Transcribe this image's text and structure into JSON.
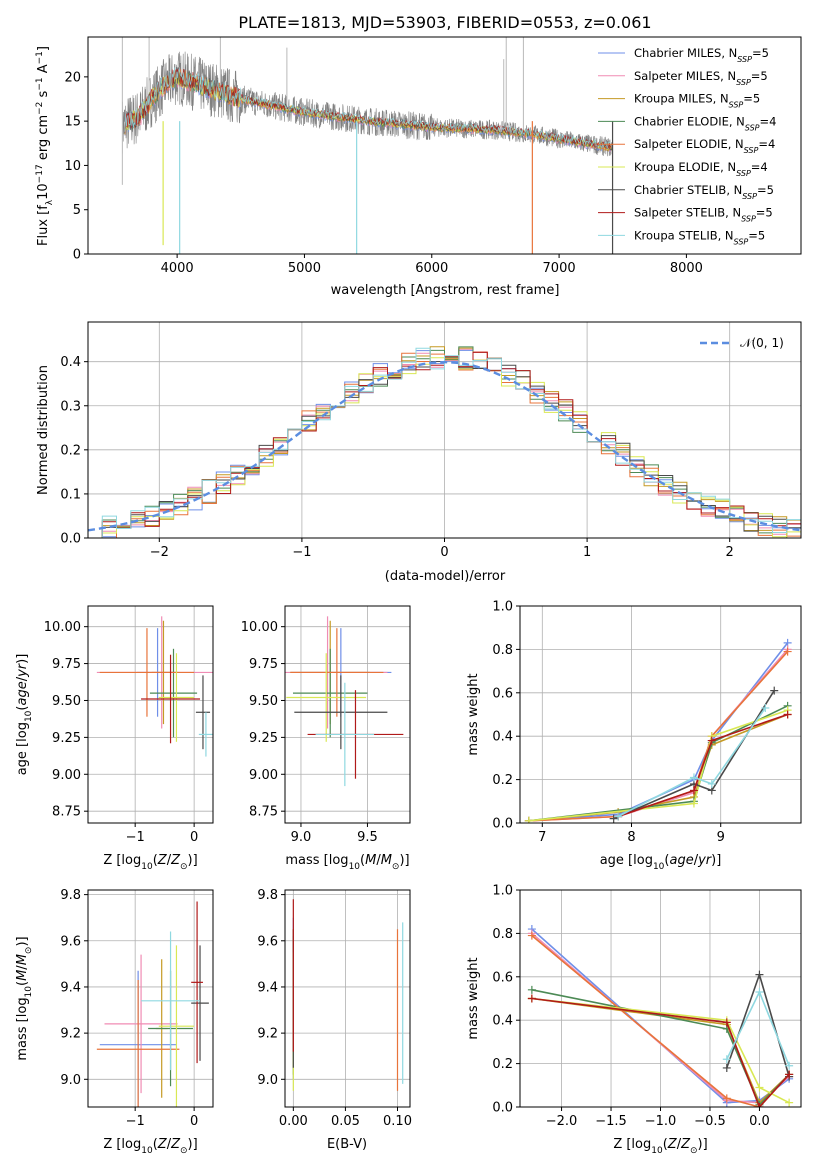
{
  "figure": {
    "title": "PLATE=1813, MJD=53903, FIBERID=0553, z=0.061",
    "series": [
      {
        "name": "Chabrier MILES",
        "nssp": "5",
        "color": "#6f8fe8"
      },
      {
        "name": "Salpeter MILES",
        "nssp": "5",
        "color": "#f08cb4"
      },
      {
        "name": "Kroupa MILES",
        "nssp": "5",
        "color": "#c59a24"
      },
      {
        "name": "Chabrier ELODIE",
        "nssp": "4",
        "color": "#4c8a55"
      },
      {
        "name": "Salpeter ELODIE",
        "nssp": "4",
        "color": "#e8743b"
      },
      {
        "name": "Kroupa ELODIE",
        "nssp": "4",
        "color": "#d9e854"
      },
      {
        "name": "Chabrier STELIB",
        "nssp": "5",
        "color": "#4a4a4a"
      },
      {
        "name": "Salpeter STELIB",
        "nssp": "5",
        "color": "#b01a1a"
      },
      {
        "name": "Kroupa STELIB",
        "nssp": "5",
        "color": "#8fd8e0"
      }
    ]
  },
  "chart_data": [
    {
      "type": "line",
      "panel": "spectrum",
      "title": "PLATE=1813, MJD=53903, FIBERID=0553, z=0.061",
      "xlabel": "wavelength [Angstrom, rest frame]",
      "ylabel_parts": [
        "Flux [f",
        "λ",
        "10",
        "−17",
        " erg cm",
        "−2",
        " s",
        "−1",
        " A",
        "−1",
        "]"
      ],
      "xlim": [
        3300,
        8900
      ],
      "ylim": [
        0,
        24.5
      ],
      "xticks": [
        4000,
        5000,
        6000,
        7000,
        8000
      ],
      "yticks": [
        0,
        5,
        10,
        15,
        20
      ],
      "legend": "top-right",
      "legend_suffix": "N",
      "legend_sub": "SSP",
      "data_color": "#808080",
      "continuum": {
        "x": [
          3570,
          3700,
          3800,
          3900,
          4000,
          4100,
          4300,
          4500,
          5000,
          5500,
          6000,
          6500,
          6800,
          7000,
          7200,
          7420
        ],
        "y": [
          14.5,
          15.5,
          17.5,
          19,
          20,
          19.5,
          18.5,
          17.5,
          16,
          15,
          14.3,
          14,
          13.5,
          13,
          12.5,
          12
        ]
      },
      "line_features": [
        {
          "x": 3890,
          "y": 1.0,
          "label": ""
        },
        {
          "x": 4020,
          "y": 0,
          "label": ""
        },
        {
          "x": 5410,
          "y": 0,
          "label": ""
        },
        {
          "x": 6790,
          "y": 0,
          "label": ""
        },
        {
          "x": 7420,
          "y": 0,
          "label": ""
        }
      ]
    },
    {
      "type": "line",
      "panel": "residuals",
      "xlabel": "(data-model)/error",
      "ylabel": "Normed distribution",
      "xlim": [
        -2.5,
        2.5
      ],
      "ylim": [
        0,
        0.49
      ],
      "xticks": [
        -2,
        -1,
        0,
        1,
        2
      ],
      "yticks": [
        0.0,
        0.1,
        0.2,
        0.3,
        0.4
      ],
      "grid": true,
      "legend": "top-right",
      "gaussian_label": "𝒩(0, 1)",
      "gaussian_color": "#5b8de0",
      "bin_width": 0.1
    },
    {
      "type": "scatter",
      "panel": "age-Z",
      "xlabel": "Z [log10(Z/Z⊙)]",
      "ylabel": "age  [log10(age/yr)]",
      "xlim": [
        -1.8,
        0.32
      ],
      "ylim": [
        8.67,
        10.14
      ],
      "xticks": [
        -1,
        0
      ],
      "yticks": [
        8.75,
        9.0,
        9.25,
        9.5,
        9.75,
        10.0
      ],
      "grid": true,
      "points": [
        {
          "series": 0,
          "x": -0.62,
          "y": 9.69,
          "xerr": 0.35,
          "yerr": 0.3
        },
        {
          "series": 1,
          "x": -0.55,
          "y": 9.69,
          "xerr": 1.1,
          "yerr": 0.38
        },
        {
          "series": 2,
          "x": -0.52,
          "y": 9.69,
          "xerr": 0.2,
          "yerr": 0.35
        },
        {
          "series": 3,
          "x": -0.35,
          "y": 9.55,
          "xerr": 0.4,
          "yerr": 0.3
        },
        {
          "series": 4,
          "x": -0.8,
          "y": 9.69,
          "xerr": 0.8,
          "yerr": 0.3
        },
        {
          "series": 5,
          "x": -0.3,
          "y": 9.52,
          "xerr": 0.3,
          "yerr": 0.3
        },
        {
          "series": 6,
          "x": 0.15,
          "y": 9.42,
          "xerr": 0.12,
          "yerr": 0.25
        },
        {
          "series": 7,
          "x": -0.4,
          "y": 9.51,
          "xerr": 0.5,
          "yerr": 0.3
        },
        {
          "series": 8,
          "x": 0.2,
          "y": 9.27,
          "xerr": 0.12,
          "yerr": 0.15
        }
      ]
    },
    {
      "type": "scatter",
      "panel": "age-mass",
      "xlabel": "mass [log10(M/M⊙)]",
      "ylabel": "",
      "xlim": [
        8.88,
        9.82
      ],
      "ylim": [
        8.67,
        10.14
      ],
      "xticks": [
        9.0,
        9.5
      ],
      "yticks": [
        8.75,
        9.0,
        9.25,
        9.5,
        9.75,
        10.0
      ],
      "grid": true,
      "points": [
        {
          "series": 0,
          "x": 9.3,
          "y": 9.69,
          "xerr": 0.38,
          "yerr": 0.3
        },
        {
          "series": 1,
          "x": 9.2,
          "y": 9.69,
          "xerr": 0.45,
          "yerr": 0.38
        },
        {
          "series": 2,
          "x": 9.22,
          "y": 9.69,
          "xerr": 0.3,
          "yerr": 0.35
        },
        {
          "series": 3,
          "x": 9.22,
          "y": 9.55,
          "xerr": 0.28,
          "yerr": 0.3
        },
        {
          "series": 4,
          "x": 9.27,
          "y": 9.69,
          "xerr": 0.35,
          "yerr": 0.3
        },
        {
          "series": 5,
          "x": 9.19,
          "y": 9.52,
          "xerr": 0.3,
          "yerr": 0.3
        },
        {
          "series": 6,
          "x": 9.3,
          "y": 9.42,
          "xerr": 0.35,
          "yerr": 0.25
        },
        {
          "series": 7,
          "x": 9.41,
          "y": 9.27,
          "xerr": 0.36,
          "yerr": 0.3
        },
        {
          "series": 8,
          "x": 9.33,
          "y": 9.27,
          "xerr": 0.22,
          "yerr": 0.35
        }
      ]
    },
    {
      "type": "line",
      "panel": "weight-age",
      "xlabel": "age  [log10(age/yr)]",
      "ylabel": "mass weight",
      "xlim": [
        6.75,
        9.9
      ],
      "ylim": [
        0,
        1.0
      ],
      "xticks": [
        7,
        8,
        9
      ],
      "yticks": [
        0.0,
        0.2,
        0.4,
        0.6,
        0.8,
        1.0
      ],
      "grid": true,
      "series_points": [
        {
          "series": 0,
          "x": [
            6.85,
            7.85,
            8.7,
            8.9,
            9.75
          ],
          "y": [
            0.01,
            0.04,
            0.2,
            0.38,
            0.83
          ]
        },
        {
          "series": 1,
          "x": [
            6.85,
            7.85,
            8.7,
            8.9,
            9.75
          ],
          "y": [
            0.01,
            0.03,
            0.14,
            0.4,
            0.8
          ]
        },
        {
          "series": 2,
          "x": [
            6.85,
            7.85,
            8.7,
            8.9,
            9.75
          ],
          "y": [
            0.01,
            0.05,
            0.12,
            0.36,
            0.5
          ]
        },
        {
          "series": 3,
          "x": [
            6.85,
            8.7,
            8.9,
            9.75
          ],
          "y": [
            0.01,
            0.1,
            0.37,
            0.54
          ]
        },
        {
          "series": 4,
          "x": [
            6.85,
            7.85,
            8.7,
            8.9,
            9.75
          ],
          "y": [
            0.01,
            0.03,
            0.15,
            0.4,
            0.79
          ]
        },
        {
          "series": 5,
          "x": [
            6.85,
            8.7,
            8.9,
            9.75
          ],
          "y": [
            0.01,
            0.09,
            0.4,
            0.52
          ]
        },
        {
          "series": 6,
          "x": [
            7.8,
            8.7,
            8.9,
            9.6
          ],
          "y": [
            0.02,
            0.18,
            0.15,
            0.61
          ]
        },
        {
          "series": 7,
          "x": [
            7.85,
            8.7,
            8.9,
            9.75
          ],
          "y": [
            0.03,
            0.15,
            0.38,
            0.5
          ]
        },
        {
          "series": 8,
          "x": [
            7.85,
            8.7,
            8.9,
            9.5
          ],
          "y": [
            0.03,
            0.21,
            0.18,
            0.53
          ]
        }
      ]
    },
    {
      "type": "scatter",
      "panel": "mass-Z",
      "xlabel": "Z [log10(Z/Z⊙)]",
      "ylabel": "mass [log10(M/M⊙)]",
      "xlim": [
        -1.8,
        0.32
      ],
      "ylim": [
        8.88,
        9.82
      ],
      "xticks": [
        -1,
        0
      ],
      "yticks": [
        9.0,
        9.2,
        9.4,
        9.6,
        9.8
      ],
      "grid": true,
      "points": [
        {
          "series": 0,
          "x": -0.95,
          "y": 9.15,
          "xerr": 0.65,
          "yerr": 0.32
        },
        {
          "series": 1,
          "x": -0.9,
          "y": 9.24,
          "xerr": 0.62,
          "yerr": 0.3
        },
        {
          "series": 2,
          "x": -0.55,
          "y": 9.22,
          "xerr": 0.1,
          "yerr": 0.3
        },
        {
          "series": 3,
          "x": -0.4,
          "y": 9.22,
          "xerr": 0.38,
          "yerr": 0.25
        },
        {
          "series": 4,
          "x": -0.95,
          "y": 9.13,
          "xerr": 0.7,
          "yerr": 0.3
        },
        {
          "series": 5,
          "x": -0.3,
          "y": 9.23,
          "xerr": 0.3,
          "yerr": 0.35
        },
        {
          "series": 6,
          "x": 0.1,
          "y": 9.33,
          "xerr": 0.15,
          "yerr": 0.25
        },
        {
          "series": 7,
          "x": 0.05,
          "y": 9.42,
          "xerr": 0.1,
          "yerr": 0.35
        },
        {
          "series": 8,
          "x": -0.4,
          "y": 9.34,
          "xerr": 0.5,
          "yerr": 0.3
        }
      ]
    },
    {
      "type": "scatter",
      "panel": "mass-EBV",
      "xlabel": "E(B-V)",
      "ylabel": "",
      "xlim": [
        -0.008,
        0.112
      ],
      "ylim": [
        8.88,
        9.82
      ],
      "xticks": [
        0.0,
        0.05,
        0.1
      ],
      "yticks": [
        9.0,
        9.2,
        9.4,
        9.6,
        9.8
      ],
      "grid": true,
      "points": [
        {
          "series": 0,
          "x": 0.0,
          "y": 9.35,
          "xerr": 0,
          "yerr": 0.35
        },
        {
          "series": 1,
          "x": 0.0,
          "y": 9.35,
          "xerr": 0,
          "yerr": 0.3
        },
        {
          "series": 2,
          "x": 0.0,
          "y": 9.35,
          "xerr": 0,
          "yerr": 0.3
        },
        {
          "series": 3,
          "x": 0.0,
          "y": 9.32,
          "xerr": 0,
          "yerr": 0.3
        },
        {
          "series": 4,
          "x": 0.1,
          "y": 9.3,
          "xerr": 0,
          "yerr": 0.35
        },
        {
          "series": 5,
          "x": 0.0,
          "y": 9.25,
          "xerr": 0,
          "yerr": 0.3
        },
        {
          "series": 6,
          "x": 0.0,
          "y": 9.35,
          "xerr": 0,
          "yerr": 0.3
        },
        {
          "series": 7,
          "x": 0.0,
          "y": 9.45,
          "xerr": 0,
          "yerr": 0.33
        },
        {
          "series": 8,
          "x": 0.105,
          "y": 9.33,
          "xerr": 0,
          "yerr": 0.35
        }
      ]
    },
    {
      "type": "line",
      "panel": "weight-Z",
      "xlabel": "Z [log10(Z/Z⊙)]",
      "ylabel": "mass weight",
      "xlim": [
        -2.42,
        0.42
      ],
      "ylim": [
        0,
        1.0
      ],
      "xticks": [
        -2.0,
        -1.5,
        -1.0,
        -0.5,
        0.0
      ],
      "yticks": [
        0.0,
        0.2,
        0.4,
        0.6,
        0.8,
        1.0
      ],
      "grid": true,
      "series_points": [
        {
          "series": 0,
          "x": [
            -2.3,
            -0.33,
            0.0,
            0.3
          ],
          "y": [
            0.82,
            0.02,
            0.03,
            0.13
          ]
        },
        {
          "series": 1,
          "x": [
            -2.3,
            -0.33,
            0.0,
            0.3
          ],
          "y": [
            0.8,
            0.03,
            0.02,
            0.14
          ]
        },
        {
          "series": 2,
          "x": [
            -2.3,
            -0.33,
            0.0,
            0.3
          ],
          "y": [
            0.5,
            0.38,
            0.02,
            0.15
          ]
        },
        {
          "series": 3,
          "x": [
            -2.3,
            -0.33,
            0.0,
            0.3
          ],
          "y": [
            0.54,
            0.36,
            0.01,
            0.15
          ]
        },
        {
          "series": 4,
          "x": [
            -2.3,
            -0.33,
            0.0,
            0.3
          ],
          "y": [
            0.79,
            0.04,
            0.0,
            0.15
          ]
        },
        {
          "series": 5,
          "x": [
            -2.3,
            -0.33,
            0.0,
            0.3
          ],
          "y": [
            0.5,
            0.4,
            0.09,
            0.02
          ]
        },
        {
          "series": 6,
          "x": [
            -0.33,
            0.0,
            0.3
          ],
          "y": [
            0.18,
            0.61,
            0.14
          ]
        },
        {
          "series": 7,
          "x": [
            -2.3,
            -0.33,
            0.0,
            0.3
          ],
          "y": [
            0.5,
            0.39,
            0.0,
            0.15
          ]
        },
        {
          "series": 8,
          "x": [
            -0.33,
            0.0,
            0.3
          ],
          "y": [
            0.22,
            0.53,
            0.19
          ]
        }
      ]
    }
  ]
}
